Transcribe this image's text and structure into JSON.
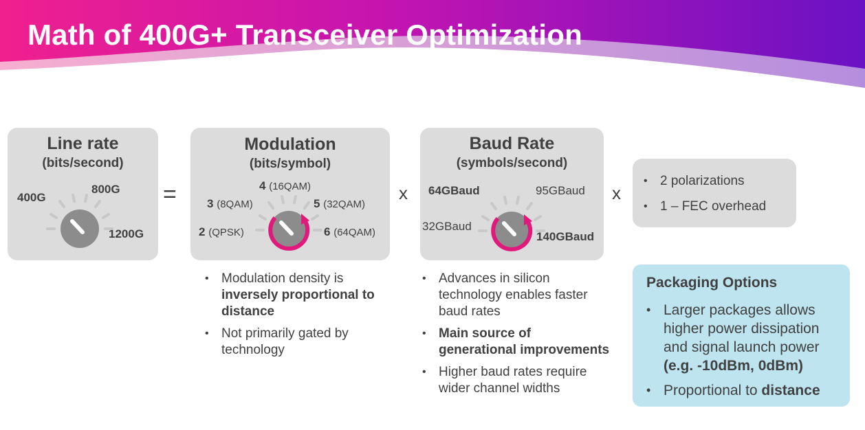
{
  "title": "Math of 400G+ Transceiver Optimization",
  "operators": {
    "equals": "=",
    "times1": "x",
    "times2": "x"
  },
  "line_rate": {
    "heading": "Line rate",
    "unit": "(bits/second)",
    "labels": [
      "400G",
      "800G",
      "1200G"
    ]
  },
  "modulation": {
    "heading": "Modulation",
    "unit": "(bits/symbol)",
    "labels": [
      {
        "num": "2",
        "name": "(QPSK)"
      },
      {
        "num": "3",
        "name": "(8QAM)"
      },
      {
        "num": "4",
        "name": "(16QAM)"
      },
      {
        "num": "5",
        "name": "(32QAM)"
      },
      {
        "num": "6",
        "name": "(64QAM)"
      }
    ],
    "bullets": [
      {
        "pre": "Modulation density is ",
        "bold": "inversely proportional to distance",
        "post": ""
      },
      {
        "pre": "Not primarily gated by technology",
        "bold": "",
        "post": ""
      }
    ]
  },
  "baud_rate": {
    "heading": "Baud Rate",
    "unit": "(symbols/second)",
    "labels": [
      "32GBaud",
      "64GBaud",
      "95GBaud",
      "140GBaud"
    ],
    "bullets": [
      {
        "pre": "Advances in silicon technology enables faster baud rates",
        "bold": "",
        "post": ""
      },
      {
        "pre": "",
        "bold": "Main source of generational improvements",
        "post": ""
      },
      {
        "pre": "Higher baud rates require wider channel widths",
        "bold": "",
        "post": ""
      }
    ]
  },
  "factors": {
    "items": [
      "2 polarizations",
      "1 – FEC overhead"
    ]
  },
  "packaging": {
    "heading": "Packaging Options",
    "items": [
      {
        "pre": "Larger packages allows higher power dissipation and signal launch power ",
        "bold": "(e.g. -10dBm, 0dBm)",
        "post": ""
      },
      {
        "pre": "Proportional to ",
        "bold": "distance",
        "post": ""
      }
    ]
  },
  "colors": {
    "banner_start": "#f0208e",
    "banner_mid": "#b012b8",
    "banner_end": "#6a12c4",
    "dial_fill": "#8c8c8c",
    "tick": "#c8c8c8",
    "accent_ring": "#e0197c",
    "box": "#dcdcdc",
    "pkg_box": "#bde4ef"
  }
}
